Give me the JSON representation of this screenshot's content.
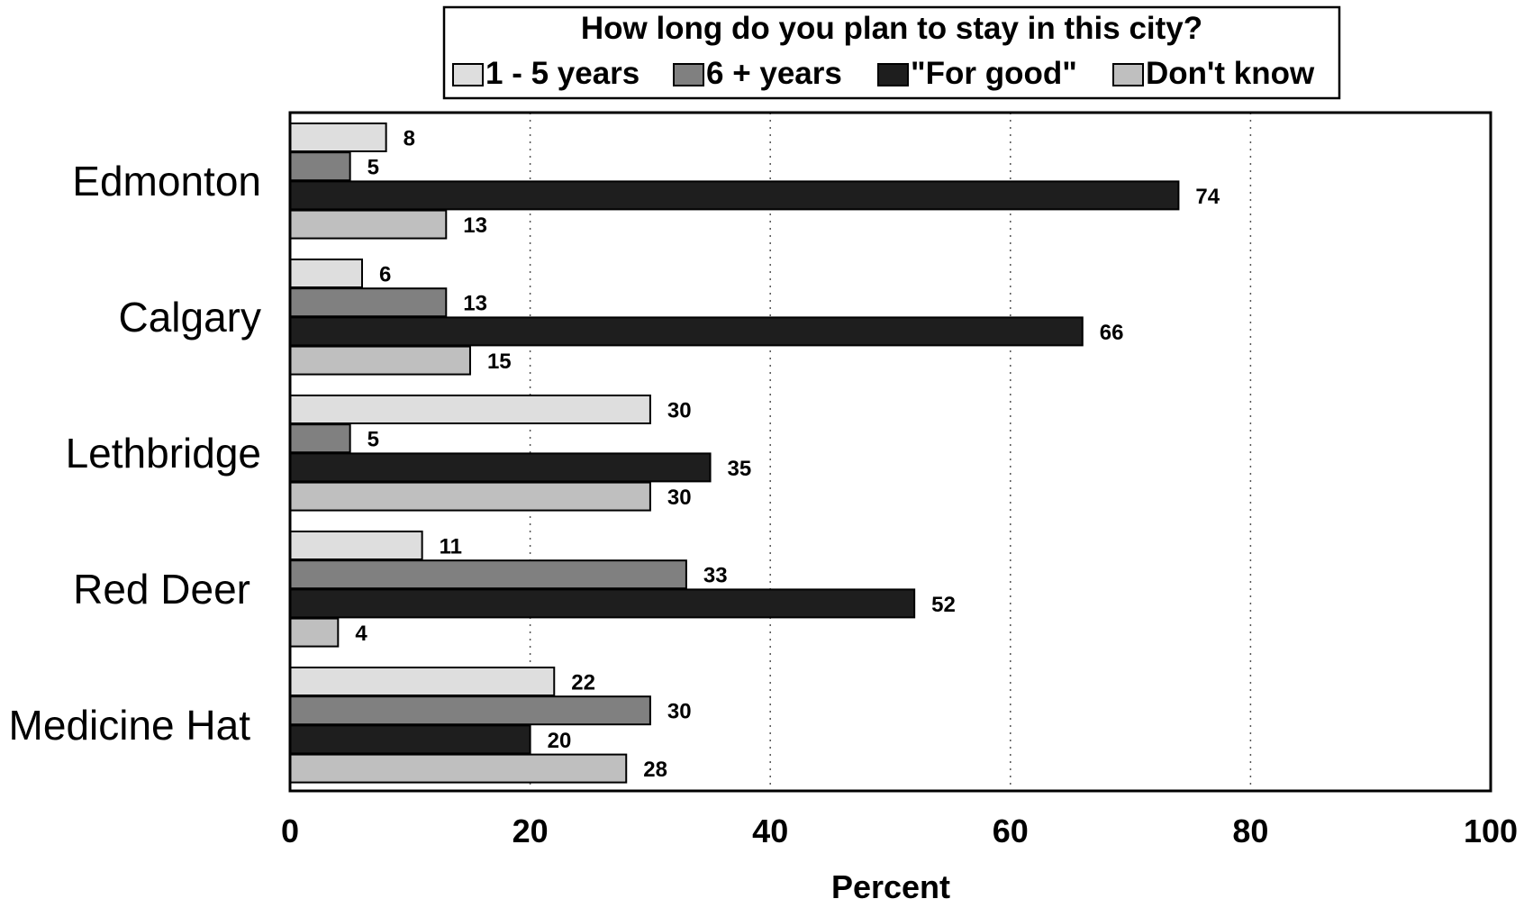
{
  "chart_data": {
    "type": "bar",
    "orientation": "horizontal",
    "title": "How long do you plan to stay in this city?",
    "categories": [
      "Edmonton",
      "Calgary",
      "Lethbridge",
      "Red Deer",
      "Medicine Hat"
    ],
    "series": [
      {
        "name": "1 - 5 years",
        "color": "#dedede",
        "values": [
          8,
          6,
          30,
          11,
          22
        ]
      },
      {
        "name": "6 + years",
        "color": "#808080",
        "values": [
          5,
          13,
          5,
          33,
          30
        ]
      },
      {
        "name": "\"For good\"",
        "color": "#1e1e1e",
        "values": [
          74,
          66,
          35,
          52,
          20
        ]
      },
      {
        "name": "Don't know",
        "color": "#bfbfbf",
        "values": [
          13,
          15,
          30,
          4,
          28
        ]
      }
    ],
    "xlabel": "Percent",
    "xlim": [
      0,
      100
    ],
    "xticks": [
      0,
      20,
      40,
      60,
      80,
      100
    ],
    "grid": "vertical dotted",
    "legend_position": "top"
  }
}
